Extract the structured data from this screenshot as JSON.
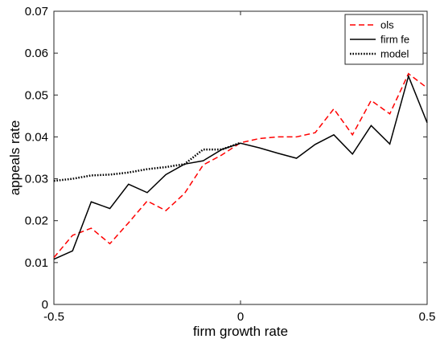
{
  "chart_data": {
    "type": "line",
    "title": "",
    "xlabel": "firm growth rate",
    "ylabel": "appeals rate",
    "xlim": [
      -0.5,
      0.5
    ],
    "ylim": [
      0,
      0.07
    ],
    "x_ticks": [
      -0.5,
      0,
      0.5
    ],
    "x_tick_labels": [
      "-0.5",
      "0",
      "0.5"
    ],
    "y_ticks": [
      0,
      0.01,
      0.02,
      0.03,
      0.04,
      0.05,
      0.06,
      0.07
    ],
    "y_tick_labels": [
      "0",
      "0.01",
      "0.02",
      "0.03",
      "0.04",
      "0.05",
      "0.06",
      "0.07"
    ],
    "grid": false,
    "legend_position": "top-right",
    "series": [
      {
        "name": "ols",
        "color": "#ff0000",
        "dash": "dashed",
        "x": [
          -0.5,
          -0.45,
          -0.4,
          -0.35,
          -0.3,
          -0.25,
          -0.2,
          -0.15,
          -0.1,
          -0.05,
          0,
          0.05,
          0.1,
          0.15,
          0.2,
          0.25,
          0.3,
          0.35,
          0.4,
          0.45,
          0.5
        ],
        "y": [
          0.0112,
          0.0165,
          0.0182,
          0.0145,
          0.0195,
          0.0247,
          0.0224,
          0.0265,
          0.0333,
          0.0357,
          0.0386,
          0.0396,
          0.04,
          0.04,
          0.041,
          0.0467,
          0.0405,
          0.0487,
          0.0455,
          0.0551,
          0.0517
        ]
      },
      {
        "name": "firm fe",
        "color": "#000000",
        "dash": "solid",
        "x": [
          -0.5,
          -0.45,
          -0.4,
          -0.35,
          -0.3,
          -0.25,
          -0.2,
          -0.15,
          -0.1,
          -0.05,
          0,
          0.05,
          0.1,
          0.15,
          0.2,
          0.25,
          0.3,
          0.35,
          0.4,
          0.45,
          0.5
        ],
        "y": [
          0.0108,
          0.0128,
          0.0245,
          0.0229,
          0.0287,
          0.0267,
          0.031,
          0.0335,
          0.0343,
          0.037,
          0.0385,
          0.0374,
          0.0361,
          0.0349,
          0.0382,
          0.0405,
          0.0359,
          0.0427,
          0.0383,
          0.0545,
          0.0434
        ]
      },
      {
        "name": "model",
        "color": "#000000",
        "dash": "dotted",
        "x": [
          -0.5,
          -0.45,
          -0.4,
          -0.35,
          -0.3,
          -0.25,
          -0.2,
          -0.15,
          -0.1,
          -0.05,
          0
        ],
        "y": [
          0.0295,
          0.03,
          0.0308,
          0.031,
          0.0315,
          0.0323,
          0.0328,
          0.0335,
          0.037,
          0.037,
          0.0386
        ]
      }
    ]
  }
}
